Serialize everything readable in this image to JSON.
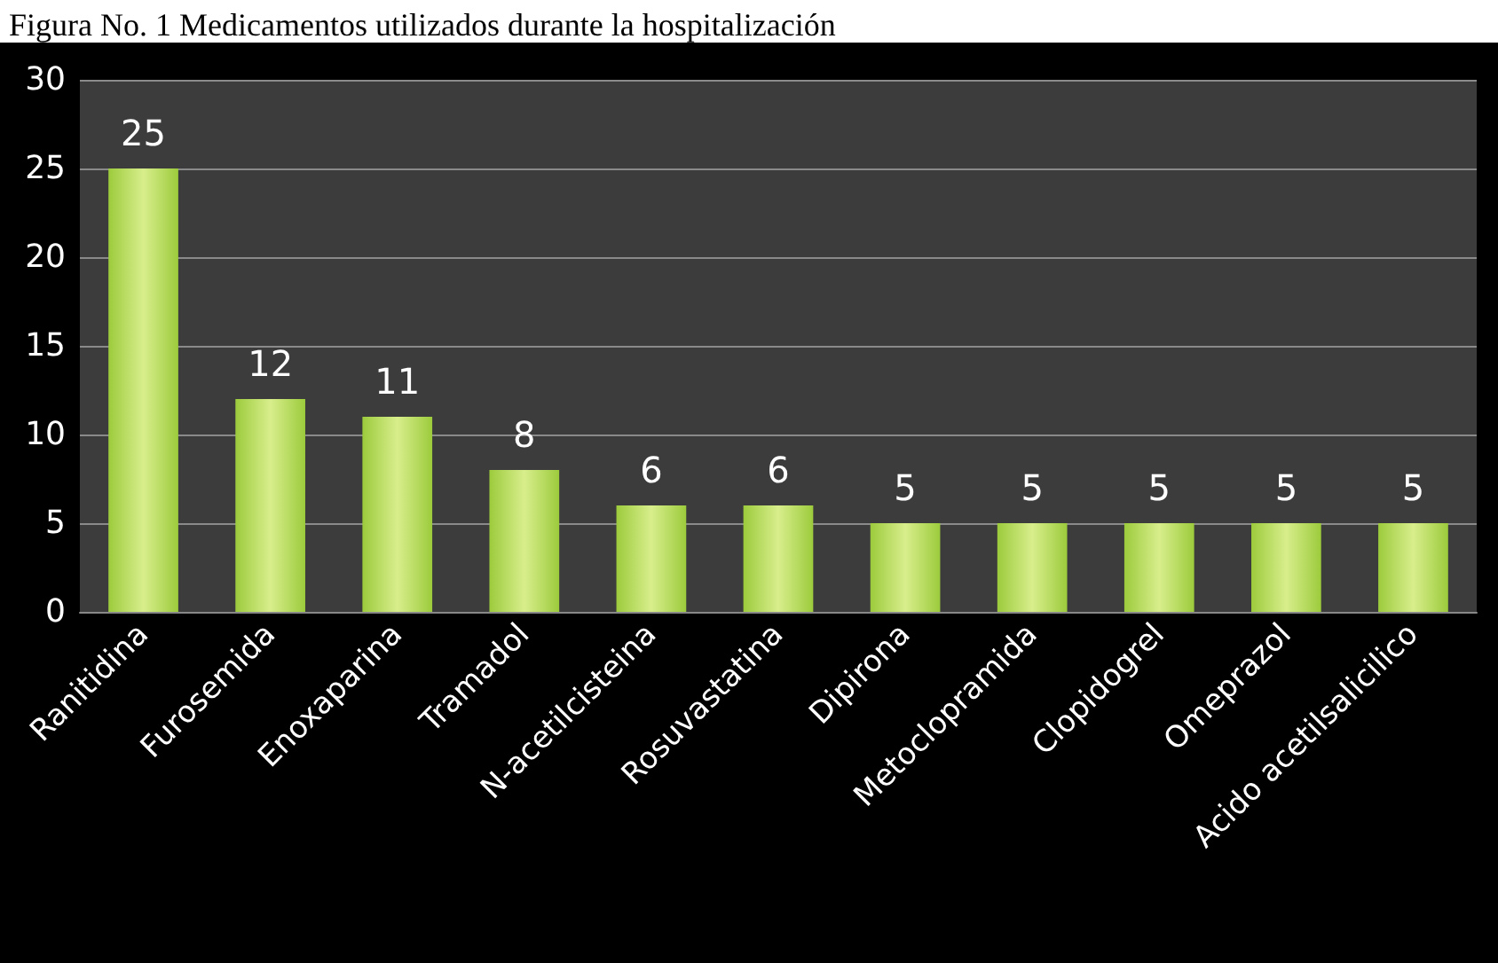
{
  "chart_data": {
    "type": "bar",
    "title": "Figura No. 1 Medicamentos utilizados durante la hospitalización",
    "categories": [
      "Ranitidina",
      "Furosemida",
      "Enoxaparina",
      "Tramadol",
      "N-acetilcisteina",
      "Rosuvastatina",
      "Dipirona",
      "Metoclopramida",
      "Clopidogrel",
      "Omeprazol",
      "Acido acetilsalicilico"
    ],
    "values": [
      25,
      12,
      11,
      8,
      6,
      6,
      5,
      5,
      5,
      5,
      5
    ],
    "color": "#9ccb3c",
    "ylim": [
      0,
      30
    ],
    "yticks": [
      0,
      5,
      10,
      15,
      20,
      25,
      30
    ],
    "grid": "y",
    "data_labels": true
  }
}
